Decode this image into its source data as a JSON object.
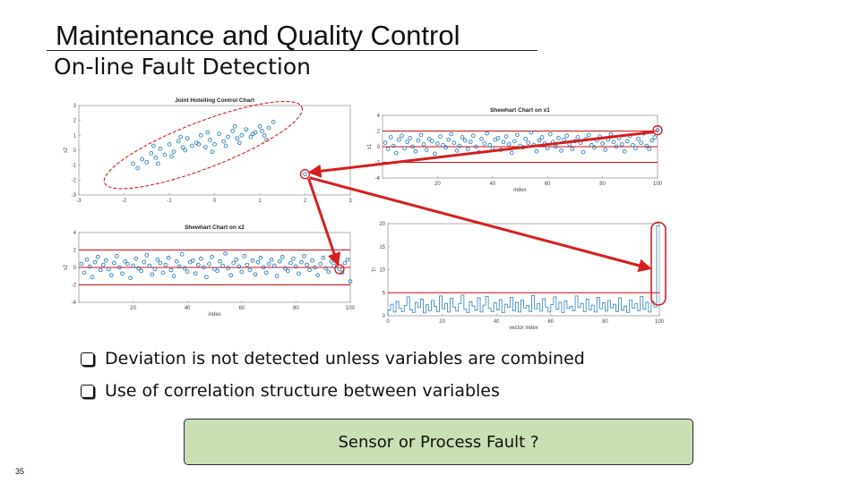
{
  "slide": {
    "title": "Maintenance and Quality Control",
    "subtitle": "On-line Fault Detection",
    "bullets": [
      "Deviation is not detected unless variables are combined",
      "Use of correlation structure between variables"
    ],
    "callout": "Sensor or Process Fault ?",
    "page_number": "35"
  },
  "colors": {
    "marker": "#2c7fb8",
    "limit_line": "#cc1111",
    "arrow": "#d42020",
    "ellipse": "#d42020",
    "callout_fill": "#c9dfb4"
  },
  "chart_data": [
    {
      "type": "scatter",
      "title": "Joint Hotelling Control Chart",
      "xlabel": "",
      "ylabel": "x2",
      "xlim": [
        -3,
        3
      ],
      "ylim": [
        -3,
        3
      ],
      "x_ticks": [
        "-3",
        "-2",
        "-1",
        "0",
        "1",
        "2",
        "3"
      ],
      "y_ticks": [
        "3",
        "2",
        "1",
        "0",
        "-1",
        "-2",
        "-3"
      ],
      "points_x": [
        -1.8,
        -1.6,
        -1.5,
        -1.4,
        -1.3,
        -1.2,
        -1.1,
        -1.0,
        -0.9,
        -0.8,
        -0.7,
        -0.6,
        -0.5,
        -0.4,
        -0.3,
        -0.2,
        -0.1,
        0.0,
        0.1,
        0.2,
        0.3,
        0.4,
        0.5,
        0.6,
        0.7,
        0.8,
        0.9,
        1.0,
        1.1,
        1.2,
        1.3,
        -1.7,
        -1.25,
        -0.95,
        -0.65,
        -0.35,
        -0.05,
        0.25,
        0.55,
        0.85,
        1.15,
        -1.35,
        -0.75,
        -0.15,
        0.45,
        1.05
      ],
      "points_y": [
        -0.9,
        -0.6,
        -0.8,
        -0.2,
        -0.5,
        0.1,
        -0.3,
        0.4,
        -0.1,
        0.6,
        0.2,
        0.8,
        0.3,
        0.5,
        1.0,
        0.2,
        0.7,
        0.4,
        1.1,
        0.6,
        0.9,
        1.3,
        0.8,
        1.0,
        1.4,
        0.9,
        1.2,
        1.6,
        1.0,
        1.5,
        1.9,
        -1.2,
        -0.9,
        -0.4,
        0.0,
        0.4,
        -0.1,
        0.3,
        0.5,
        1.1,
        0.7,
        0.3,
        0.9,
        1.2,
        1.6,
        1.3
      ],
      "fault_point": [
        2.0,
        -1.6
      ],
      "control_ellipse": true
    },
    {
      "type": "scatter",
      "title": "Shewhart Chart on x1",
      "xlabel": "index",
      "ylabel": "x1",
      "xlim": [
        0,
        100
      ],
      "ylim": [
        -4,
        4
      ],
      "x_ticks": [
        "20",
        "40",
        "60",
        "80",
        "100"
      ],
      "y_ticks": [
        "4",
        "2",
        "0",
        "-2",
        "-4"
      ],
      "control_limits": [
        -2,
        0,
        2
      ],
      "values": [
        0.5,
        -0.3,
        1.2,
        0.1,
        -0.8,
        0.9,
        1.4,
        -0.2,
        0.6,
        1.1,
        0.0,
        -0.6,
        0.8,
        1.5,
        0.3,
        -0.4,
        1.0,
        0.7,
        -0.9,
        0.4,
        1.3,
        0.2,
        -0.1,
        0.9,
        1.6,
        0.5,
        -0.5,
        0.1,
        1.2,
        0.8,
        -0.3,
        0.6,
        1.4,
        0.0,
        -0.7,
        1.0,
        0.4,
        1.7,
        0.2,
        -0.2,
        0.9,
        1.1,
        -0.4,
        0.6,
        1.3,
        0.3,
        -0.8,
        0.7,
        1.5,
        0.1,
        -0.1,
        1.0,
        0.5,
        1.8,
        0.2,
        -0.6,
        0.8,
        1.2,
        0.4,
        -0.2,
        1.6,
        0.6,
        0.0,
        1.1,
        -0.5,
        0.9,
        1.4,
        0.3,
        -0.3,
        0.7,
        1.2,
        0.5,
        -0.7,
        1.0,
        1.5,
        0.2,
        -0.1,
        0.8,
        1.3,
        0.4,
        -0.4,
        0.9,
        1.6,
        0.6,
        0.0,
        1.1,
        0.3,
        -0.6,
        0.7,
        1.4,
        0.2,
        -0.2,
        1.0,
        0.5,
        1.7,
        0.1,
        -0.3,
        0.8,
        1.2,
        2.1
      ],
      "fault_index": 100
    },
    {
      "type": "scatter",
      "title": "Shewhart Chart on x2",
      "xlabel": "index",
      "ylabel": "x2",
      "xlim": [
        0,
        100
      ],
      "ylim": [
        -4,
        4
      ],
      "x_ticks": [
        "20",
        "40",
        "60",
        "80",
        "100"
      ],
      "y_ticks": [
        "4",
        "2",
        "0",
        "-2",
        "-4"
      ],
      "control_limits": [
        -2,
        0,
        2
      ],
      "values": [
        0.4,
        -0.6,
        0.9,
        0.1,
        -1.1,
        0.6,
        1.2,
        -0.3,
        0.3,
        0.8,
        -0.2,
        -0.9,
        0.5,
        1.3,
        0.0,
        -0.7,
        0.7,
        0.4,
        -1.2,
        0.2,
        1.0,
        -0.1,
        -0.4,
        0.6,
        1.4,
        0.2,
        -0.8,
        -0.2,
        0.9,
        0.5,
        -0.6,
        0.3,
        1.1,
        -0.3,
        -1.0,
        0.7,
        0.1,
        1.5,
        -0.1,
        -0.5,
        0.6,
        0.8,
        -0.7,
        0.3,
        1.0,
        0.0,
        -1.1,
        0.4,
        1.2,
        -0.2,
        -0.4,
        0.7,
        0.2,
        1.6,
        -0.1,
        -0.9,
        0.5,
        0.9,
        0.1,
        -0.5,
        1.3,
        0.3,
        -0.3,
        0.8,
        -0.8,
        0.6,
        1.1,
        0.0,
        -0.6,
        0.4,
        0.9,
        0.2,
        -1.0,
        0.7,
        1.2,
        -0.1,
        -0.4,
        0.5,
        1.0,
        0.1,
        -0.7,
        0.6,
        1.3,
        0.3,
        -0.3,
        0.8,
        0.0,
        -0.9,
        0.4,
        1.1,
        -0.1,
        -0.5,
        0.7,
        0.2,
        1.4,
        -0.2,
        -0.6,
        0.5,
        0.9,
        -1.6
      ],
      "fault_index": 96
    },
    {
      "type": "line",
      "title": "",
      "xlabel": "vector index",
      "ylabel": "T²",
      "xlim": [
        0,
        100
      ],
      "ylim": [
        0,
        20
      ],
      "x_ticks": [
        "0",
        "20",
        "40",
        "60",
        "80",
        "100"
      ],
      "y_ticks": [
        "20",
        "15",
        "10",
        "5",
        "0"
      ],
      "control_limit": 5,
      "values": [
        1.2,
        2.5,
        0.8,
        3.1,
        1.6,
        0.9,
        2.2,
        4.1,
        1.3,
        0.7,
        2.9,
        1.8,
        3.6,
        0.6,
        2.4,
        1.1,
        3.3,
        2.0,
        0.9,
        4.3,
        1.5,
        2.7,
        0.8,
        3.8,
        1.9,
        1.0,
        2.6,
        4.5,
        1.4,
        0.7,
        3.0,
        2.1,
        1.2,
        3.9,
        0.8,
        2.3,
        4.2,
        1.6,
        0.9,
        2.8,
        1.3,
        3.5,
        0.7,
        2.5,
        1.8,
        4.0,
        1.1,
        2.9,
        0.8,
        3.4,
        1.7,
        2.2,
        0.9,
        4.4,
        1.5,
        2.6,
        1.0,
        3.7,
        1.9,
        0.8,
        2.4,
        4.1,
        1.4,
        2.9,
        0.7,
        3.2,
        1.6,
        2.0,
        1.1,
        4.3,
        1.8,
        2.7,
        0.9,
        3.6,
        1.3,
        2.3,
        0.8,
        4.0,
        1.5,
        2.8,
        1.0,
        3.3,
        1.7,
        2.5,
        0.9,
        3.9,
        1.2,
        2.1,
        0.7,
        3.4,
        1.6,
        2.6,
        1.1,
        4.2,
        1.4,
        2.9,
        0.8,
        3.1,
        1.9,
        19.5
      ]
    }
  ]
}
